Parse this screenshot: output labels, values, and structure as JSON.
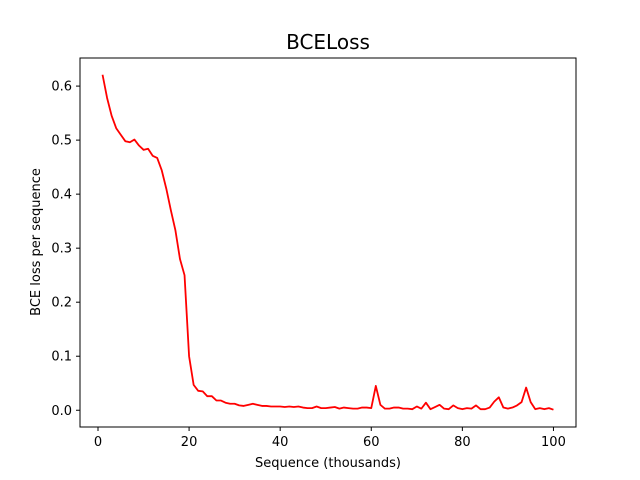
{
  "chart_data": {
    "type": "line",
    "title": "BCELoss",
    "xlabel": "Sequence (thousands)",
    "ylabel": "BCE loss per sequence",
    "xlim": [
      -3.95,
      104.95
    ],
    "ylim": [
      -0.031,
      0.652
    ],
    "xticks": [
      0,
      20,
      40,
      60,
      80,
      100
    ],
    "xtick_labels": [
      "0",
      "20",
      "40",
      "60",
      "80",
      "100"
    ],
    "yticks": [
      0.0,
      0.1,
      0.2,
      0.3,
      0.4,
      0.5,
      0.6
    ],
    "ytick_labels": [
      "0.0",
      "0.1",
      "0.2",
      "0.3",
      "0.4",
      "0.5",
      "0.6"
    ],
    "grid": false,
    "legend": "none",
    "series": [
      {
        "color": "#ff0000",
        "x": [
          1,
          2,
          3,
          4,
          5,
          6,
          7,
          8,
          9,
          10,
          11,
          12,
          13,
          14,
          15,
          16,
          17,
          18,
          19,
          20,
          21,
          22,
          23,
          24,
          25,
          26,
          27,
          28,
          29,
          30,
          31,
          32,
          33,
          34,
          35,
          36,
          37,
          38,
          39,
          40,
          41,
          42,
          43,
          44,
          45,
          46,
          47,
          48,
          49,
          50,
          51,
          52,
          53,
          54,
          55,
          56,
          57,
          58,
          59,
          60,
          61,
          62,
          63,
          64,
          65,
          66,
          67,
          68,
          69,
          70,
          71,
          72,
          73,
          74,
          75,
          76,
          77,
          78,
          79,
          80,
          81,
          82,
          83,
          84,
          85,
          86,
          87,
          88,
          89,
          90,
          91,
          92,
          93,
          94,
          95,
          96,
          97,
          98,
          99,
          100
        ],
        "y": [
          0.621,
          0.578,
          0.545,
          0.522,
          0.51,
          0.498,
          0.496,
          0.501,
          0.49,
          0.482,
          0.484,
          0.471,
          0.467,
          0.444,
          0.41,
          0.37,
          0.333,
          0.28,
          0.25,
          0.1,
          0.047,
          0.036,
          0.035,
          0.026,
          0.026,
          0.018,
          0.018,
          0.014,
          0.012,
          0.012,
          0.009,
          0.008,
          0.01,
          0.012,
          0.01,
          0.008,
          0.008,
          0.007,
          0.007,
          0.007,
          0.006,
          0.007,
          0.006,
          0.007,
          0.005,
          0.004,
          0.004,
          0.007,
          0.004,
          0.004,
          0.005,
          0.006,
          0.003,
          0.005,
          0.004,
          0.003,
          0.003,
          0.005,
          0.005,
          0.004,
          0.045,
          0.01,
          0.003,
          0.003,
          0.005,
          0.005,
          0.003,
          0.003,
          0.002,
          0.007,
          0.003,
          0.014,
          0.002,
          0.006,
          0.01,
          0.003,
          0.002,
          0.009,
          0.004,
          0.002,
          0.004,
          0.003,
          0.009,
          0.002,
          0.002,
          0.005,
          0.016,
          0.024,
          0.005,
          0.003,
          0.005,
          0.009,
          0.015,
          0.042,
          0.015,
          0.002,
          0.004,
          0.002,
          0.004,
          0.001
        ]
      }
    ]
  }
}
